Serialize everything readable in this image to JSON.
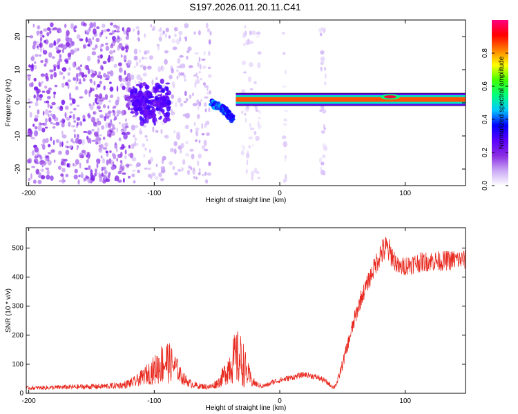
{
  "title": "S197.2026.011.20.11.C41",
  "chart_data": [
    {
      "type": "heatmap",
      "title": "S197.2026.011.20.11.C41",
      "xlabel": "Height of straight line (km)",
      "ylabel": "Frequency (Hz)",
      "xlim": [
        -202,
        148
      ],
      "ylim": [
        -25,
        25
      ],
      "xticks": [
        -200,
        -100,
        0,
        100
      ],
      "yticks": [
        -20,
        -10,
        0,
        10,
        20
      ],
      "colorbar": {
        "label": "Normalized spectral amplitude",
        "range": [
          0,
          1
        ],
        "ticks": [
          "0.0",
          "0.2",
          "0.4",
          "0.6",
          "0.8"
        ],
        "tick_values": [
          0.0,
          0.2,
          0.4,
          0.6,
          0.8
        ],
        "stops": [
          "#ffffff",
          "#c9a8f5",
          "#8a2be2",
          "#5a00ff",
          "#0000ff",
          "#00c8ff",
          "#00ff80",
          "#40ff00",
          "#ffff00",
          "#ff8000",
          "#ff0000",
          "#ff0080"
        ]
      },
      "noise_regions": [
        {
          "x_range": [
            -200,
            -118
          ],
          "y_range": [
            -24,
            24
          ],
          "density": 0.9,
          "level": 0.15
        },
        {
          "x_range": [
            -118,
            -55
          ],
          "y_range": [
            -24,
            24
          ],
          "density": 0.45,
          "level": 0.08
        },
        {
          "x_range": [
            -30,
            -15
          ],
          "y_range": [
            -24,
            24
          ],
          "density": 0.35,
          "level": 0.05
        },
        {
          "x_range": [
            3,
            5
          ],
          "y_range": [
            -24,
            24
          ],
          "density": 0.3,
          "level": 0.05
        },
        {
          "x_range": [
            32,
            37
          ],
          "y_range": [
            -24,
            24
          ],
          "density": 0.4,
          "level": 0.06
        }
      ],
      "features": [
        {
          "name": "broadband burst",
          "x_range": [
            -118,
            -88
          ],
          "y_center": 0,
          "y_halfwidth": 5,
          "level": 0.22
        },
        {
          "name": "descending trace",
          "x": [
            -55,
            -50,
            -45,
            -42,
            -40,
            -37
          ],
          "y": [
            0,
            -1,
            -2,
            -3,
            -4,
            -5
          ],
          "level": 0.3
        },
        {
          "name": "steady 1 Hz line",
          "x_range": [
            -35,
            148
          ],
          "y_center": 1,
          "y_halfwidth": 1,
          "level": 0.85
        },
        {
          "name": "peak near 88 km",
          "x_center": 88,
          "y_center": 1.8,
          "level": 0.95
        }
      ]
    },
    {
      "type": "line",
      "xlabel": "Height of straight line (km)",
      "ylabel": "SNR (10 * v/v)",
      "xlim": [
        -202,
        148
      ],
      "ylim": [
        0,
        570
      ],
      "xticks": [
        -200,
        -100,
        0,
        100
      ],
      "yticks": [
        0,
        100,
        200,
        300,
        400,
        500
      ],
      "color": "#e8281e",
      "series": [
        {
          "name": "SNR envelope",
          "x": [
            -202,
            -180,
            -160,
            -140,
            -125,
            -115,
            -108,
            -100,
            -95,
            -90,
            -86,
            -82,
            -78,
            -72,
            -65,
            -55,
            -48,
            -42,
            -38,
            -34,
            -30,
            -26,
            -22,
            -18,
            -14,
            -10,
            -5,
            0,
            5,
            10,
            15,
            20,
            25,
            30,
            35,
            40,
            43,
            46,
            50,
            55,
            60,
            65,
            70,
            75,
            80,
            85,
            90,
            95,
            100,
            110,
            120,
            130,
            140,
            148
          ],
          "y": [
            18,
            20,
            22,
            24,
            28,
            40,
            60,
            80,
            100,
            110,
            100,
            85,
            55,
            35,
            25,
            22,
            40,
            80,
            110,
            120,
            110,
            70,
            40,
            30,
            25,
            28,
            40,
            45,
            50,
            55,
            60,
            65,
            60,
            55,
            45,
            30,
            20,
            40,
            100,
            180,
            260,
            330,
            380,
            430,
            480,
            500,
            470,
            430,
            440,
            450,
            455,
            455,
            460,
            460
          ],
          "noise": [
            6,
            8,
            9,
            10,
            12,
            20,
            30,
            50,
            70,
            80,
            60,
            40,
            25,
            15,
            10,
            10,
            20,
            50,
            80,
            100,
            90,
            50,
            20,
            10,
            8,
            8,
            10,
            10,
            10,
            10,
            10,
            10,
            10,
            10,
            10,
            8,
            8,
            12,
            20,
            25,
            30,
            30,
            30,
            35,
            45,
            50,
            40,
            30,
            35,
            35,
            35,
            35,
            35,
            35
          ]
        }
      ]
    }
  ]
}
